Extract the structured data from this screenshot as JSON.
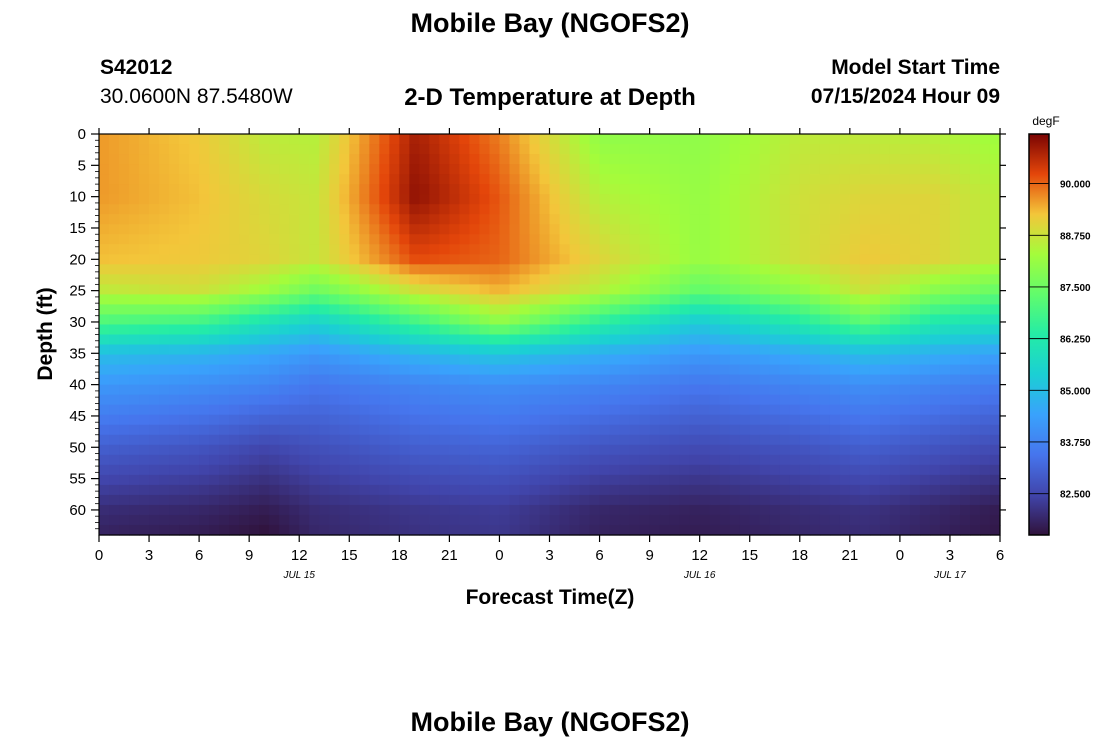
{
  "header": {
    "title": "Mobile Bay (NGOFS2)",
    "station_id": "S42012",
    "station_coords": "30.0600N  87.5480W",
    "subtitle": "2-D Temperature at Depth",
    "start_label": "Model Start Time",
    "start_value": "07/15/2024 Hour 09"
  },
  "footer": {
    "title": "Mobile Bay (NGOFS2)"
  },
  "chart_data": {
    "type": "heatmap",
    "xlabel": "Forecast Time(Z)",
    "ylabel": "Depth (ft)",
    "x_ticks": [
      "0",
      "3",
      "6",
      "9",
      "12",
      "15",
      "18",
      "21",
      "0",
      "3",
      "6",
      "9",
      "12",
      "15",
      "18",
      "21",
      "0",
      "3",
      "6"
    ],
    "x_hours": [
      0,
      3,
      6,
      9,
      12,
      15,
      18,
      21,
      24,
      27,
      30,
      33,
      36,
      39,
      42,
      45,
      48,
      51,
      54
    ],
    "date_labels": [
      {
        "text": "JUL 15",
        "hour": 12
      },
      {
        "text": "JUL 16",
        "hour": 36
      },
      {
        "text": "JUL 17",
        "hour": 51
      }
    ],
    "y_ticks": [
      0,
      5,
      10,
      15,
      20,
      25,
      30,
      35,
      40,
      45,
      50,
      55,
      60
    ],
    "ylim": [
      0,
      64
    ],
    "y_inverted": true,
    "colorbar": {
      "unit": "degF",
      "ticks": [
        "90.000",
        "88.750",
        "87.500",
        "86.250",
        "85.000",
        "83.750",
        "82.500"
      ],
      "min": 81.5,
      "max": 91.2
    },
    "temperature_f": {
      "hours": [
        0,
        6,
        10,
        13,
        19,
        24,
        30,
        36,
        42,
        46,
        50,
        54
      ],
      "depths_ft": [
        0,
        10,
        20,
        25,
        30,
        35,
        40,
        50,
        60,
        64
      ],
      "values": [
        [
          89.6,
          89.2,
          88.6,
          88.5,
          90.8,
          89.8,
          88.0,
          88.0,
          88.6,
          88.6,
          88.5,
          88.2
        ],
        [
          89.6,
          89.3,
          88.9,
          88.7,
          91.0,
          90.1,
          88.5,
          88.1,
          88.8,
          89.0,
          89.0,
          88.5
        ],
        [
          89.3,
          89.2,
          89.0,
          88.7,
          90.2,
          90.0,
          89.0,
          88.1,
          88.8,
          89.2,
          89.0,
          88.5
        ],
        [
          88.6,
          88.8,
          88.2,
          87.5,
          88.8,
          89.4,
          88.5,
          87.3,
          88.0,
          88.8,
          87.9,
          87.4
        ],
        [
          87.0,
          86.8,
          86.0,
          85.5,
          86.8,
          88.0,
          86.5,
          85.3,
          86.3,
          87.2,
          86.2,
          85.9
        ],
        [
          85.0,
          84.8,
          84.5,
          84.2,
          84.8,
          85.2,
          84.7,
          84.2,
          84.6,
          85.0,
          84.7,
          84.4
        ],
        [
          84.2,
          84.0,
          83.8,
          83.5,
          83.8,
          84.0,
          83.8,
          83.5,
          83.8,
          84.0,
          83.8,
          83.6
        ],
        [
          83.0,
          82.8,
          82.5,
          82.7,
          83.0,
          83.1,
          82.8,
          82.6,
          82.8,
          83.0,
          82.8,
          82.6
        ],
        [
          82.0,
          81.9,
          81.7,
          82.0,
          82.2,
          82.3,
          81.9,
          81.8,
          82.0,
          82.1,
          81.9,
          81.7
        ],
        [
          81.8,
          81.7,
          81.5,
          81.9,
          82.1,
          82.2,
          81.8,
          81.7,
          81.9,
          82.0,
          81.8,
          81.6
        ]
      ]
    }
  }
}
